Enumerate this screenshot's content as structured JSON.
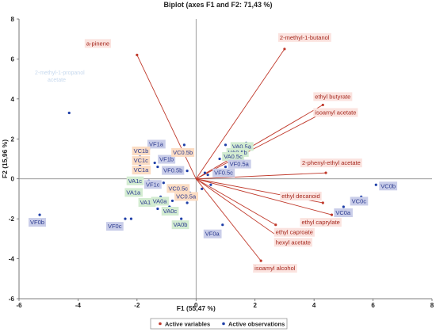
{
  "chart_data": {
    "type": "biplot",
    "title": "Biplot (axes F1 and F2: 71,43 %)",
    "xlabel": "F1 (55,47 %)",
    "ylabel": "F2 (15,96 %)",
    "xlim": [
      -6,
      8
    ],
    "ylim": [
      -6,
      8
    ],
    "xticks": [
      -6,
      -4,
      -2,
      0,
      2,
      4,
      6,
      8
    ],
    "yticks": [
      -6,
      -4,
      -2,
      0,
      2,
      4,
      6,
      8
    ],
    "grid": false,
    "legend_position": "bottom",
    "legend": [
      "Active variables",
      "Active observations"
    ],
    "colors": {
      "variables": "#c0392b",
      "observations": "#1f3fa8",
      "variable_label_bg": "#fbe3df"
    },
    "variables": [
      {
        "name": "a-pinene",
        "x": -2.0,
        "y": 6.2
      },
      {
        "name": "2-methyl-1-butanol",
        "x": 3.0,
        "y": 6.5
      },
      {
        "name": "ethyl butyrate",
        "x": 4.3,
        "y": 3.7
      },
      {
        "name": "isoamyl acetate",
        "x": 4.3,
        "y": 3.3
      },
      {
        "name": "2-phenyl-ethyl acetate",
        "x": 4.4,
        "y": 0.3
      },
      {
        "name": "ethyl decanoid",
        "x": 4.3,
        "y": -1.2
      },
      {
        "name": "ethyl caprylate",
        "x": 4.6,
        "y": -1.8
      },
      {
        "name": "ethyl caproate",
        "x": 2.7,
        "y": -2.3
      },
      {
        "name": "hexyl acetate",
        "x": 2.7,
        "y": -2.8
      },
      {
        "name": "isoamyl alcohol",
        "x": 2.2,
        "y": -4.1
      }
    ],
    "observations": [
      {
        "name": "VF1a",
        "x": -1.7,
        "y": 1.4,
        "label": "VF1a",
        "group": "blue"
      },
      {
        "name": "VC1b",
        "x": -1.9,
        "y": 1.1,
        "label": "VC1b",
        "group": "orange"
      },
      {
        "name": "VC1c",
        "x": -1.9,
        "y": 0.7,
        "label": "VC1c",
        "group": "orange"
      },
      {
        "name": "VC1a",
        "x": -1.9,
        "y": 0.3,
        "label": "VC1a",
        "group": "orange"
      },
      {
        "name": "VF1b",
        "x": -1.4,
        "y": 0.8,
        "label": "VF1b",
        "group": "blue"
      },
      {
        "name": "VF1c",
        "x": -1.7,
        "y": -0.3,
        "label": "VF1c",
        "group": "blue"
      },
      {
        "name": "VA1c",
        "x": -2.3,
        "y": -0.2,
        "label": "VA1c",
        "group": "green"
      },
      {
        "name": "VA1a",
        "x": -2.2,
        "y": -0.7,
        "label": "VA1a",
        "group": "green"
      },
      {
        "name": "VA1b",
        "x": -1.9,
        "y": -1.2,
        "label": "VA1b",
        "group": "green"
      },
      {
        "name": "VC0.5b",
        "x": -0.3,
        "y": 1.3,
        "label": "VC0.5b",
        "group": "orange"
      },
      {
        "name": "VF0.5b",
        "x": -0.3,
        "y": 0.4,
        "label": "VF0.5b",
        "group": "blue"
      },
      {
        "name": "VF0.5c",
        "x": 0.4,
        "y": 0.2,
        "label": "VF0.5c",
        "group": "blue"
      },
      {
        "name": "VA0.5a",
        "x": 1.6,
        "y": 1.6,
        "label": "VA0.5a",
        "group": "green"
      },
      {
        "name": "VA0.5b",
        "x": 1.3,
        "y": 1.3,
        "label": "VA0.5b",
        "group": "green"
      },
      {
        "name": "VA0.5c",
        "x": 1.1,
        "y": 1.1,
        "label": "VA0.5c",
        "group": "green"
      },
      {
        "name": "VF0.5a",
        "x": 1.3,
        "y": 0.8,
        "label": "VF0.5a",
        "group": "blue"
      },
      {
        "name": "VC0.5c",
        "x": -0.4,
        "y": -0.5,
        "label": "VC0.5c",
        "group": "orange"
      },
      {
        "name": "VC0.5a",
        "x": -0.3,
        "y": -0.9,
        "label": "VC0.5a",
        "group": "orange"
      },
      {
        "name": "VA0a",
        "x": -1.2,
        "y": -0.9,
        "label": "VA0a",
        "group": "green"
      },
      {
        "name": "VA0c",
        "x": -0.9,
        "y": -1.4,
        "label": "VA0c",
        "group": "green"
      },
      {
        "name": "VA0b",
        "x": -0.5,
        "y": -2.0,
        "label": "VA0b",
        "group": "green"
      },
      {
        "name": "VF0a",
        "x": 0.9,
        "y": -2.3,
        "label": "VF0a",
        "group": "blue"
      },
      {
        "name": "VF0b",
        "x": -5.3,
        "y": -1.8,
        "label": "VF0b",
        "group": "blue"
      },
      {
        "name": "VF0c",
        "x": -2.4,
        "y": -2.0,
        "label": "VF0c",
        "group": "blue"
      },
      {
        "name": "VC0a",
        "x": 5.0,
        "y": -1.4,
        "label": "VC0a",
        "group": "blue"
      },
      {
        "name": "VC0c",
        "x": 5.6,
        "y": -0.9,
        "label": "VC0c",
        "group": "blue"
      },
      {
        "name": "VC0b",
        "x": 6.1,
        "y": -0.3,
        "label": "VC0b",
        "group": "blue"
      },
      {
        "name": "p1",
        "x": -4.3,
        "y": 3.3,
        "label": ""
      },
      {
        "name": "p2",
        "x": -1.6,
        "y": 1.5,
        "label": ""
      },
      {
        "name": "p3",
        "x": -1.3,
        "y": 0.6,
        "label": ""
      },
      {
        "name": "p4",
        "x": -1.9,
        "y": -1.2,
        "label": ""
      },
      {
        "name": "p5",
        "x": -1.6,
        "y": -0.1,
        "label": ""
      },
      {
        "name": "p6",
        "x": -1.1,
        "y": -0.2,
        "label": ""
      },
      {
        "name": "p7",
        "x": -0.7,
        "y": -0.4,
        "label": ""
      },
      {
        "name": "p8",
        "x": -0.8,
        "y": -1.1,
        "label": ""
      },
      {
        "name": "p9",
        "x": -0.6,
        "y": -0.6,
        "label": ""
      },
      {
        "name": "p10",
        "x": -0.5,
        "y": 0.3,
        "label": ""
      },
      {
        "name": "p11",
        "x": -0.4,
        "y": 1.7,
        "label": ""
      },
      {
        "name": "p12",
        "x": 0.3,
        "y": 0.3,
        "label": ""
      },
      {
        "name": "p13",
        "x": 0.8,
        "y": 1.0,
        "label": ""
      },
      {
        "name": "p14",
        "x": 1.0,
        "y": 0.6,
        "label": ""
      },
      {
        "name": "p15",
        "x": 1.0,
        "y": 1.7,
        "label": ""
      },
      {
        "name": "p16",
        "x": 1.4,
        "y": 1.4,
        "label": ""
      },
      {
        "name": "p17",
        "x": 1.7,
        "y": 1.8,
        "label": ""
      },
      {
        "name": "p18",
        "x": 1.2,
        "y": 1.0,
        "label": ""
      },
      {
        "name": "p19",
        "x": 0.5,
        "y": -0.3,
        "label": ""
      },
      {
        "name": "p20",
        "x": 0.2,
        "y": -0.5,
        "label": ""
      },
      {
        "name": "p21",
        "x": -0.2,
        "y": -0.7,
        "label": ""
      },
      {
        "name": "p22",
        "x": -0.3,
        "y": -1.2,
        "label": ""
      },
      {
        "name": "p23",
        "x": -1.3,
        "y": -1.5,
        "label": ""
      },
      {
        "name": "p24",
        "x": -2.2,
        "y": -2.0,
        "label": ""
      }
    ],
    "faint_labels": [
      "2-methyl-1-propanol",
      "acetate"
    ]
  }
}
